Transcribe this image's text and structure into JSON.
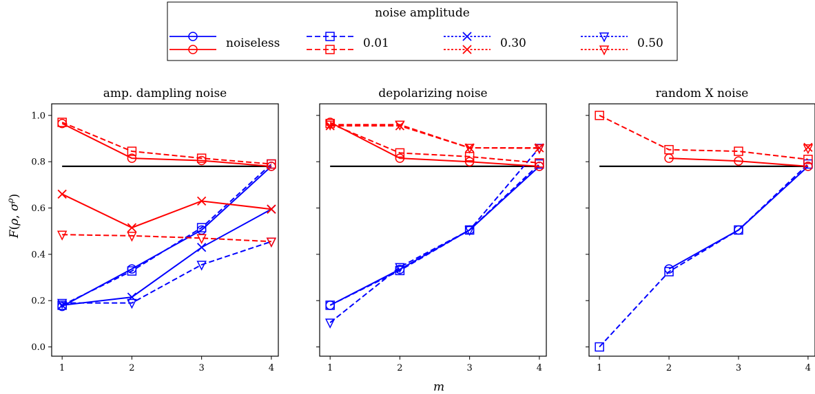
{
  "legend": {
    "title": "noise amplitude",
    "entries": [
      {
        "label": "noiseless",
        "marker": "circle",
        "dash": "solid"
      },
      {
        "label": "0.01",
        "marker": "square",
        "dash": "dashed"
      },
      {
        "label": "0.30",
        "marker": "x",
        "dash": "dotted"
      },
      {
        "label": "0.50",
        "marker": "triangle-down",
        "dash": "dotted"
      }
    ],
    "colors": [
      "#0000ff",
      "#ff0000"
    ]
  },
  "chart_data": [
    {
      "type": "line",
      "title": "amp. dampling noise",
      "xlabel": "m",
      "ylabel": "F(ρ, σ^ρ)",
      "x": [
        1,
        2,
        3,
        4
      ],
      "xlim": [
        0.85,
        4.1
      ],
      "ylim": [
        -0.04,
        1.05
      ],
      "yticks": [
        "0.0",
        "0.2",
        "0.4",
        "0.6",
        "0.8",
        "1.0"
      ],
      "reference_line": 0.78,
      "series": [
        {
          "color": "#0000ff",
          "marker": "circle",
          "dash": "solid",
          "values": [
            0.175,
            0.337,
            0.505,
            0.78
          ]
        },
        {
          "color": "#0000ff",
          "marker": "square",
          "dash": "dashed",
          "values": [
            0.18,
            0.328,
            0.515,
            0.79
          ]
        },
        {
          "color": "#0000ff",
          "marker": "x",
          "dash": "solid",
          "values": [
            0.18,
            0.215,
            0.43,
            0.595
          ]
        },
        {
          "color": "#0000ff",
          "marker": "triangle-down",
          "dash": "dashed",
          "values": [
            0.19,
            0.19,
            0.355,
            0.455
          ]
        },
        {
          "color": "#ff0000",
          "marker": "circle",
          "dash": "solid",
          "values": [
            0.965,
            0.815,
            0.805,
            0.78
          ]
        },
        {
          "color": "#ff0000",
          "marker": "square",
          "dash": "dashed",
          "values": [
            0.97,
            0.845,
            0.815,
            0.79
          ]
        },
        {
          "color": "#ff0000",
          "marker": "x",
          "dash": "solid",
          "values": [
            0.66,
            0.515,
            0.63,
            0.595
          ]
        },
        {
          "color": "#ff0000",
          "marker": "triangle-down",
          "dash": "dashed",
          "values": [
            0.485,
            0.48,
            0.47,
            0.455
          ]
        }
      ]
    },
    {
      "type": "line",
      "title": "depolarizing noise",
      "xlabel": "m",
      "ylabel": "",
      "x": [
        1,
        2,
        3,
        4
      ],
      "xlim": [
        0.85,
        4.1
      ],
      "ylim": [
        -0.04,
        1.05
      ],
      "yticks": [],
      "reference_line": 0.78,
      "series": [
        {
          "color": "#0000ff",
          "marker": "circle",
          "dash": "solid",
          "values": [
            0.18,
            0.335,
            0.505,
            0.78
          ]
        },
        {
          "color": "#0000ff",
          "marker": "square",
          "dash": "dashed",
          "values": [
            0.18,
            0.33,
            0.505,
            0.79
          ]
        },
        {
          "color": "#0000ff",
          "marker": "triangle-down",
          "dash": "dashed",
          "values": [
            0.105,
            0.345,
            0.505,
            0.86
          ]
        },
        {
          "color": "#ff0000",
          "marker": "circle",
          "dash": "solid",
          "values": [
            0.97,
            0.815,
            0.8,
            0.78
          ]
        },
        {
          "color": "#ff0000",
          "marker": "square",
          "dash": "dashed",
          "values": [
            0.965,
            0.838,
            0.822,
            0.795
          ]
        },
        {
          "color": "#ff0000",
          "marker": "triangle-down",
          "dash": "dashed",
          "values": [
            0.96,
            0.96,
            0.86,
            0.858
          ]
        },
        {
          "color": "#ff0000",
          "marker": "x",
          "dash": "dashed",
          "values": [
            0.955,
            0.955,
            0.86,
            0.86
          ]
        }
      ]
    },
    {
      "type": "line",
      "title": "random X noise",
      "xlabel": "m",
      "ylabel": "",
      "x": [
        1,
        2,
        3,
        4
      ],
      "xlim": [
        0.85,
        4.1
      ],
      "ylim": [
        -0.04,
        1.05
      ],
      "yticks": [],
      "reference_line": 0.78,
      "series": [
        {
          "color": "#0000ff",
          "marker": "circle",
          "dash": "solid",
          "values": [
            null,
            0.337,
            0.505,
            0.78
          ]
        },
        {
          "color": "#0000ff",
          "marker": "square",
          "dash": "dashed",
          "values": [
            0.0,
            0.325,
            0.505,
            0.79
          ]
        },
        {
          "color": "#ff0000",
          "marker": "circle",
          "dash": "solid",
          "values": [
            null,
            0.815,
            0.803,
            0.78
          ]
        },
        {
          "color": "#ff0000",
          "marker": "square",
          "dash": "dashed",
          "values": [
            1.0,
            0.852,
            0.845,
            0.81
          ]
        },
        {
          "color": "#ff0000",
          "marker": "x",
          "dash": "dotted",
          "values": [
            null,
            null,
            null,
            0.862
          ]
        },
        {
          "color": "#ff0000",
          "marker": "triangle-down",
          "dash": "dotted",
          "values": [
            null,
            null,
            null,
            0.858
          ]
        }
      ]
    }
  ]
}
